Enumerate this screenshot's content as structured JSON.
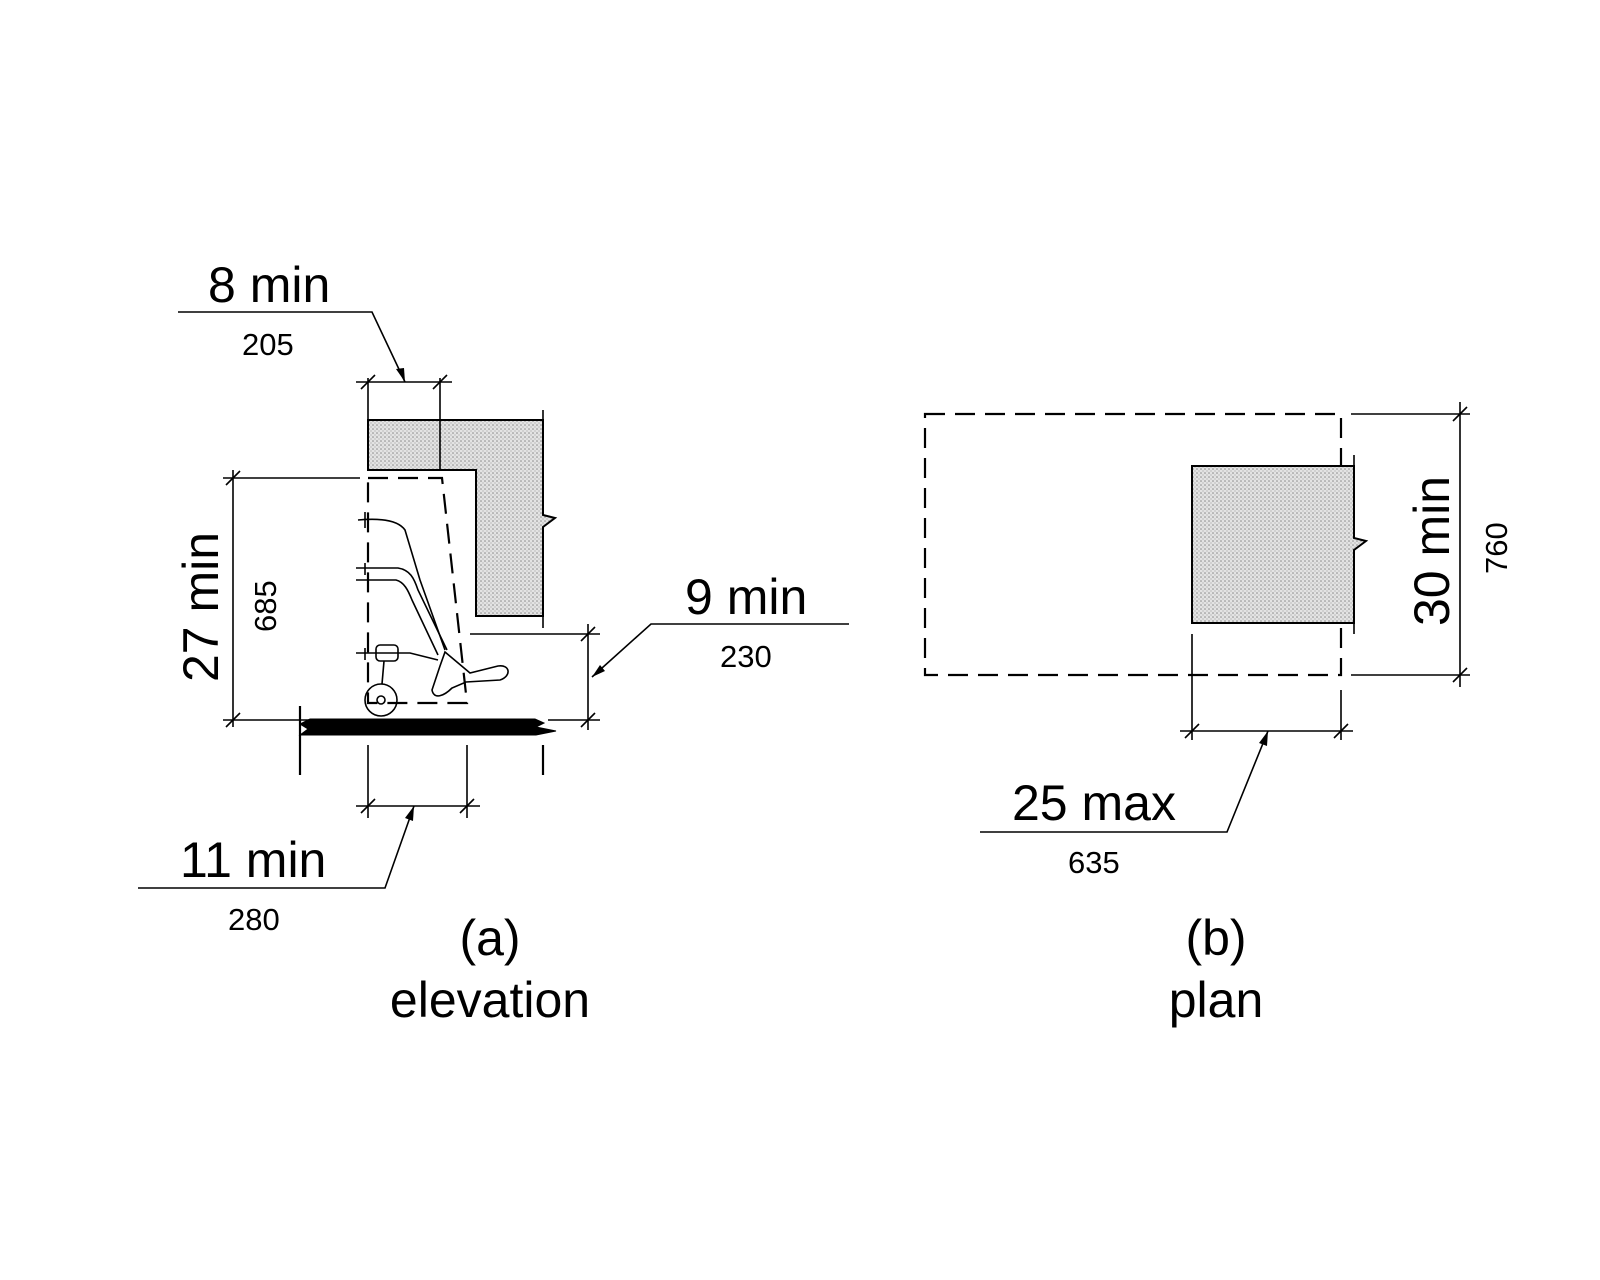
{
  "elevation": {
    "top_depth": {
      "imperial": "8 min",
      "metric": "205"
    },
    "knee_height": {
      "imperial": "27 min",
      "metric": "685"
    },
    "toe_height": {
      "imperial": "9 min",
      "metric": "230"
    },
    "toe_depth": {
      "imperial": "11 min",
      "metric": "280"
    },
    "caption_letter": "(a)",
    "caption_label": "elevation"
  },
  "plan": {
    "clear_width": {
      "imperial": "30 min",
      "metric": "760"
    },
    "max_depth": {
      "imperial": "25 max",
      "metric": "635"
    },
    "caption_letter": "(b)",
    "caption_label": "plan"
  },
  "colors": {
    "line": "#000000",
    "counter_fill": "#d9d9d9",
    "floor": "#000000"
  }
}
